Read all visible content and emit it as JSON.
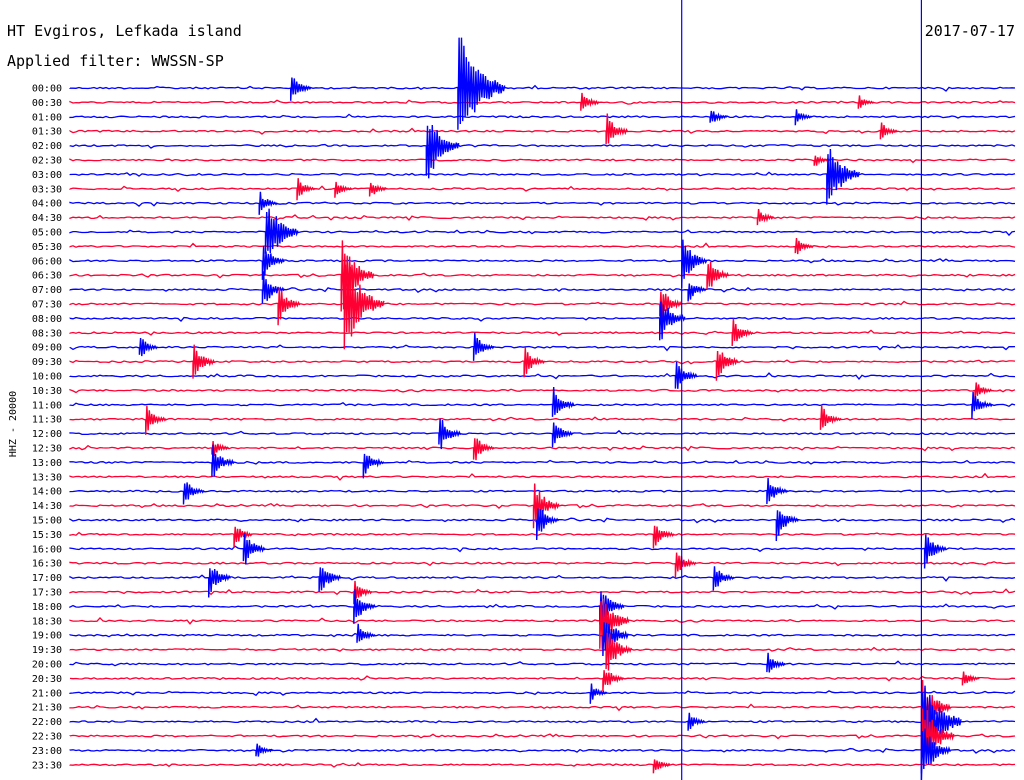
{
  "header": {
    "station": "HT Evgiros, Lefkada island",
    "date": "2017-07-17",
    "filter": "Applied filter: WWSSN-SP"
  },
  "colors": {
    "odd_trace": "#0000ff",
    "even_trace": "#ff0033",
    "event_line": "#0000ff"
  },
  "chart_data": {
    "type": "line",
    "title": "HT Evgiros, Lefkada island",
    "ylabel": "HHZ - 20000",
    "rows": [
      "00:00",
      "00:30",
      "01:00",
      "01:30",
      "02:00",
      "02:30",
      "03:00",
      "03:30",
      "04:00",
      "04:30",
      "05:00",
      "05:30",
      "06:00",
      "06:30",
      "07:00",
      "07:30",
      "08:00",
      "08:30",
      "09:00",
      "09:30",
      "10:00",
      "10:30",
      "11:00",
      "11:30",
      "12:00",
      "12:30",
      "13:00",
      "13:30",
      "14:00",
      "14:30",
      "15:00",
      "15:30",
      "16:00",
      "16:30",
      "17:00",
      "17:30",
      "18:00",
      "18:30",
      "19:00",
      "19:30",
      "20:00",
      "20:30",
      "21:00",
      "21:30",
      "22:00",
      "22:30",
      "23:00",
      "23:30"
    ],
    "row_minutes": 30,
    "x_range_minutes": [
      0,
      30
    ],
    "grid": false,
    "events": [
      {
        "row": 0,
        "minute": 12.3,
        "amplitude": 5.0
      },
      {
        "row": 0,
        "minute": 7.0,
        "amplitude": 1.2
      },
      {
        "row": 1,
        "minute": 16.2,
        "amplitude": 1.0
      },
      {
        "row": 1,
        "minute": 25.0,
        "amplitude": 0.6
      },
      {
        "row": 2,
        "minute": 20.3,
        "amplitude": 0.8
      },
      {
        "row": 2,
        "minute": 23.0,
        "amplitude": 0.7
      },
      {
        "row": 3,
        "minute": 17.0,
        "amplitude": 1.5
      },
      {
        "row": 3,
        "minute": 25.7,
        "amplitude": 0.8
      },
      {
        "row": 4,
        "minute": 11.3,
        "amplitude": 3.0
      },
      {
        "row": 5,
        "minute": 23.6,
        "amplitude": 0.6
      },
      {
        "row": 6,
        "minute": 24.0,
        "amplitude": 3.0
      },
      {
        "row": 7,
        "minute": 7.2,
        "amplitude": 0.9
      },
      {
        "row": 7,
        "minute": 9.5,
        "amplitude": 0.8
      },
      {
        "row": 7,
        "minute": 8.4,
        "amplitude": 0.7
      },
      {
        "row": 8,
        "minute": 6.0,
        "amplitude": 1.0
      },
      {
        "row": 9,
        "minute": 21.8,
        "amplitude": 0.8
      },
      {
        "row": 10,
        "minute": 6.2,
        "amplitude": 3.0
      },
      {
        "row": 11,
        "minute": 23.0,
        "amplitude": 0.9
      },
      {
        "row": 12,
        "minute": 19.4,
        "amplitude": 2.0
      },
      {
        "row": 12,
        "minute": 6.1,
        "amplitude": 1.5
      },
      {
        "row": 13,
        "minute": 8.6,
        "amplitude": 3.0
      },
      {
        "row": 13,
        "minute": 20.2,
        "amplitude": 1.5
      },
      {
        "row": 14,
        "minute": 6.1,
        "amplitude": 1.5
      },
      {
        "row": 14,
        "minute": 19.6,
        "amplitude": 1.0
      },
      {
        "row": 15,
        "minute": 6.6,
        "amplitude": 1.5
      },
      {
        "row": 15,
        "minute": 8.7,
        "amplitude": 4.0
      },
      {
        "row": 15,
        "minute": 18.7,
        "amplitude": 1.5
      },
      {
        "row": 16,
        "minute": 18.7,
        "amplitude": 2.0
      },
      {
        "row": 17,
        "minute": 21.0,
        "amplitude": 1.2
      },
      {
        "row": 18,
        "minute": 12.8,
        "amplitude": 1.2
      },
      {
        "row": 18,
        "minute": 2.2,
        "amplitude": 1.0
      },
      {
        "row": 19,
        "minute": 3.9,
        "amplitude": 1.5
      },
      {
        "row": 19,
        "minute": 14.4,
        "amplitude": 1.2
      },
      {
        "row": 19,
        "minute": 20.5,
        "amplitude": 1.5
      },
      {
        "row": 20,
        "minute": 19.2,
        "amplitude": 1.5
      },
      {
        "row": 21,
        "minute": 28.7,
        "amplitude": 0.8
      },
      {
        "row": 22,
        "minute": 15.3,
        "amplitude": 1.5
      },
      {
        "row": 22,
        "minute": 28.6,
        "amplitude": 1.2
      },
      {
        "row": 23,
        "minute": 2.4,
        "amplitude": 1.2
      },
      {
        "row": 23,
        "minute": 23.8,
        "amplitude": 1.2
      },
      {
        "row": 24,
        "minute": 11.7,
        "amplitude": 1.5
      },
      {
        "row": 24,
        "minute": 15.3,
        "amplitude": 1.2
      },
      {
        "row": 25,
        "minute": 12.8,
        "amplitude": 1.2
      },
      {
        "row": 25,
        "minute": 4.5,
        "amplitude": 0.8
      },
      {
        "row": 26,
        "minute": 4.5,
        "amplitude": 1.5
      },
      {
        "row": 26,
        "minute": 9.3,
        "amplitude": 1.2
      },
      {
        "row": 28,
        "minute": 3.6,
        "amplitude": 1.2
      },
      {
        "row": 28,
        "minute": 22.1,
        "amplitude": 1.2
      },
      {
        "row": 29,
        "minute": 14.7,
        "amplitude": 2.0
      },
      {
        "row": 30,
        "minute": 14.8,
        "amplitude": 1.5
      },
      {
        "row": 30,
        "minute": 22.4,
        "amplitude": 1.5
      },
      {
        "row": 31,
        "minute": 5.2,
        "amplitude": 1.0
      },
      {
        "row": 31,
        "minute": 18.5,
        "amplitude": 1.2
      },
      {
        "row": 32,
        "minute": 5.5,
        "amplitude": 1.5
      },
      {
        "row": 32,
        "minute": 27.1,
        "amplitude": 1.5
      },
      {
        "row": 33,
        "minute": 19.2,
        "amplitude": 1.2
      },
      {
        "row": 34,
        "minute": 4.4,
        "amplitude": 1.5
      },
      {
        "row": 34,
        "minute": 7.9,
        "amplitude": 1.5
      },
      {
        "row": 34,
        "minute": 20.4,
        "amplitude": 1.2
      },
      {
        "row": 35,
        "minute": 9.0,
        "amplitude": 1.0
      },
      {
        "row": 36,
        "minute": 9.0,
        "amplitude": 1.5
      },
      {
        "row": 36,
        "minute": 16.8,
        "amplitude": 1.8
      },
      {
        "row": 37,
        "minute": 16.8,
        "amplitude": 2.5
      },
      {
        "row": 38,
        "minute": 9.1,
        "amplitude": 1.0
      },
      {
        "row": 38,
        "minute": 16.9,
        "amplitude": 2.0
      },
      {
        "row": 39,
        "minute": 17.0,
        "amplitude": 2.0
      },
      {
        "row": 40,
        "minute": 22.1,
        "amplitude": 1.0
      },
      {
        "row": 41,
        "minute": 28.3,
        "amplitude": 0.8
      },
      {
        "row": 41,
        "minute": 16.9,
        "amplitude": 1.2
      },
      {
        "row": 42,
        "minute": 16.5,
        "amplitude": 0.8
      },
      {
        "row": 43,
        "minute": 27.0,
        "amplitude": 2.5
      },
      {
        "row": 44,
        "minute": 19.6,
        "amplitude": 0.8
      },
      {
        "row": 44,
        "minute": 27.0,
        "amplitude": 4.0
      },
      {
        "row": 45,
        "minute": 27.0,
        "amplitude": 3.0
      },
      {
        "row": 46,
        "minute": 27.0,
        "amplitude": 2.5
      },
      {
        "row": 46,
        "minute": 5.9,
        "amplitude": 0.7
      },
      {
        "row": 47,
        "minute": 18.5,
        "amplitude": 0.8
      }
    ],
    "vertical_lines": [
      {
        "minute": 19.4
      },
      {
        "minute": 27.0
      }
    ]
  }
}
